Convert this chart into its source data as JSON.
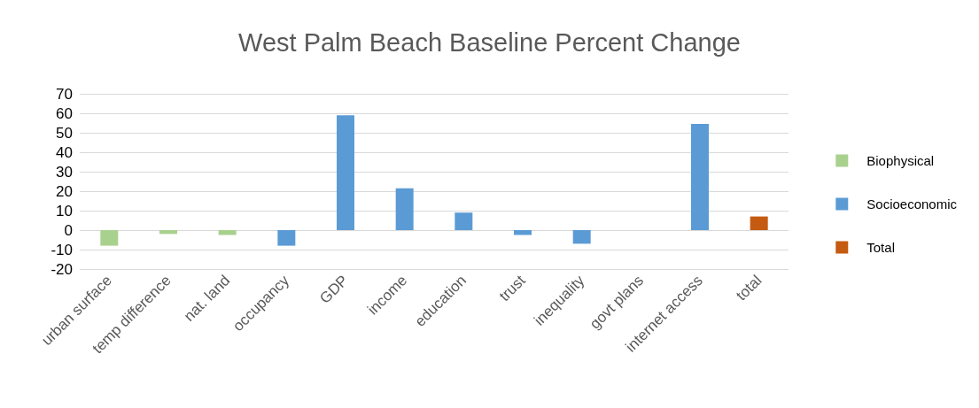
{
  "chart_data": {
    "type": "bar",
    "title": "West Palm Beach Baseline Percent Change",
    "categories": [
      "urban surface",
      "temp difference",
      "nat. land",
      "occupancy",
      "GDP",
      "income",
      "education",
      "trust",
      "inequality",
      "govt plans",
      "internet access",
      "total"
    ],
    "series": [
      {
        "name": "Biophysical",
        "color": "#a9d18e",
        "values": [
          -8,
          -2,
          -2.5,
          null,
          null,
          null,
          null,
          null,
          null,
          null,
          null,
          null
        ]
      },
      {
        "name": "Socioeconomic",
        "color": "#5b9bd5",
        "values": [
          null,
          null,
          null,
          -8,
          59,
          21.5,
          9,
          -2.5,
          -7,
          0,
          54.5,
          null
        ]
      },
      {
        "name": "Total",
        "color": "#c55a11",
        "values": [
          null,
          null,
          null,
          null,
          null,
          null,
          null,
          null,
          null,
          null,
          null,
          7
        ]
      }
    ],
    "ylim": [
      -20,
      70
    ],
    "yticks": [
      -20,
      -10,
      0,
      10,
      20,
      30,
      40,
      50,
      60,
      70
    ],
    "grid": "y",
    "legend": "right"
  }
}
